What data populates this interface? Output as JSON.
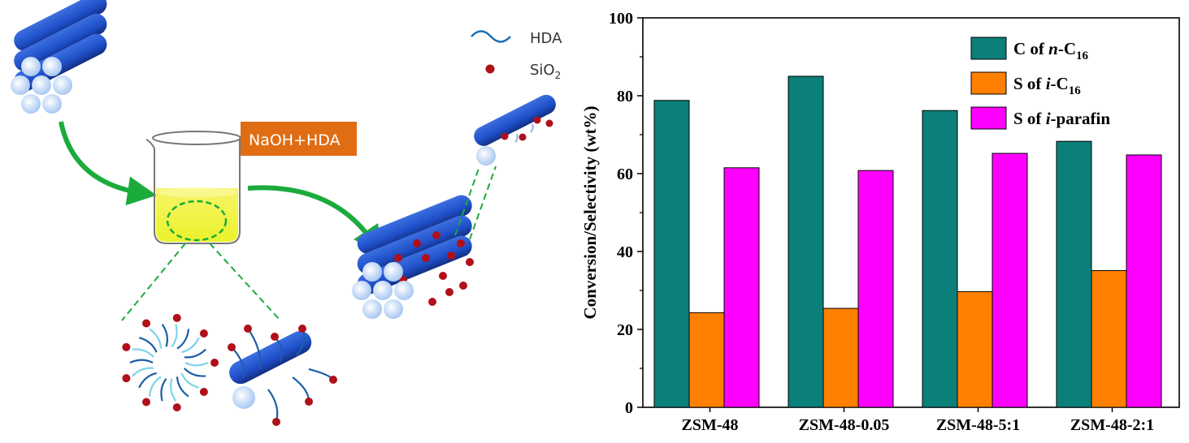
{
  "scheme": {
    "legend_hda": "HDA",
    "legend_sio2_base": "SiO",
    "legend_sio2_sub": "2",
    "reagent_label": "NaOH+HDA"
  },
  "colors": {
    "rod_blue": "#1f4fc9",
    "rod_end": "#dbe9fb",
    "arrow_green": "#1aab3c",
    "sio2_red": "#b0101a",
    "hda_blue": "#1c6fb5",
    "solution_yellow": "#f4f13a",
    "reagent_orange": "#e06d14",
    "series_teal": "#0b7f7a",
    "series_orange": "#ff8000",
    "series_magenta": "#ff00ff"
  },
  "chart_data": {
    "type": "bar",
    "categories": [
      "ZSM-48",
      "ZSM-48-0.05",
      "ZSM-48-5:1",
      "ZSM-48-2:1"
    ],
    "series": [
      {
        "name_base": "C of ",
        "name_italic": "n",
        "name_rest": "-C",
        "name_sub": "16",
        "values": [
          78.8,
          85.0,
          76.2,
          68.3
        ]
      },
      {
        "name_base": "S of ",
        "name_italic": "i",
        "name_rest": "-C",
        "name_sub": "16",
        "values": [
          24.3,
          25.4,
          29.7,
          35.1
        ]
      },
      {
        "name_base": "S of ",
        "name_italic": "i",
        "name_rest": "-parafin",
        "name_sub": "",
        "values": [
          61.5,
          60.8,
          65.2,
          64.8
        ]
      }
    ],
    "ylabel": "Conversion/Selectivity (wt%)",
    "ylim": [
      0,
      100
    ],
    "yticks": [
      0,
      20,
      40,
      60,
      80,
      100
    ],
    "legend_position": "top-right"
  }
}
